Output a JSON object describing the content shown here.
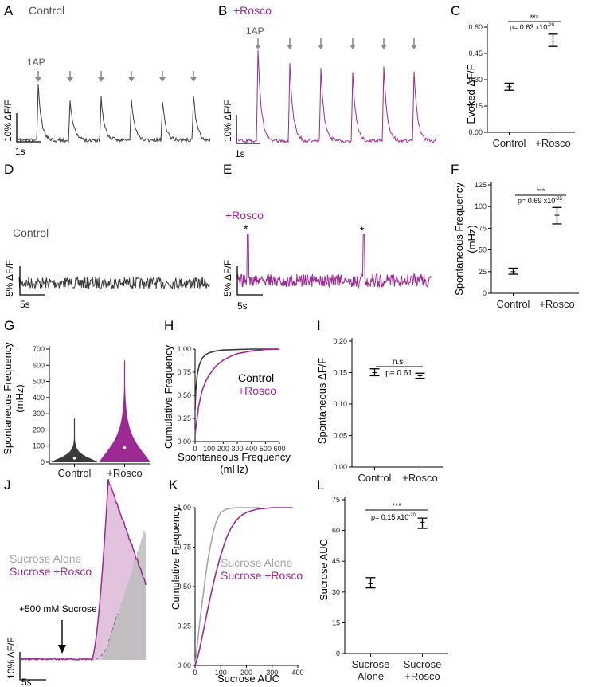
{
  "colors": {
    "control": "#3a3a3a",
    "rosco": "#9b2a92",
    "rosco_fill": "#e2c3de",
    "sucrose_alone": "#a6a6a6",
    "sucrose_fill": "#c8c8c8",
    "arrow": "#8c8c8c"
  },
  "icons": {
    "stimulus": "down-arrow-icon"
  },
  "panels": {
    "A": {
      "letter": "A",
      "title": "Control",
      "stim": "1AP",
      "scale_y": "10% ΔF/F",
      "scale_x": "1s"
    },
    "B": {
      "letter": "B",
      "title": "+Rosco",
      "stim": "1AP",
      "scale_y": "10% ΔF/F",
      "scale_x": "1s"
    },
    "C": {
      "letter": "C",
      "ylabel": "Evoked ΔF/F",
      "sig": "***",
      "pval": "p= 0.63 x10",
      "pexp": "-20"
    },
    "D": {
      "letter": "D",
      "title": "Control",
      "scale_y": "5% ΔF/F",
      "scale_x": "5s"
    },
    "E": {
      "letter": "E",
      "title": "+Rosco",
      "marker": "*",
      "scale_y": "5% ΔF/F",
      "scale_x": "5s"
    },
    "F": {
      "letter": "F",
      "ylabel": "Spontaneous Frequency",
      "ylabel2": "(mHz)",
      "sig": "***",
      "pval": "p= 0.69 x10",
      "pexp": "-35"
    },
    "G": {
      "letter": "G",
      "ylabel": "Spontaneous Frequency",
      "ylabel2": "(mHz)"
    },
    "H": {
      "letter": "H",
      "ylabel": "Cumulative Frequency",
      "xlabel": "Spontaneous Frequency",
      "xlabel2": "(mHz)",
      "legend_control": "Control",
      "legend_rosco": "+Rosco"
    },
    "I": {
      "letter": "I",
      "ylabel": "Spontaneous ΔF/F",
      "sig": "n.s.",
      "pval": "p= 0.61"
    },
    "J": {
      "letter": "J",
      "legend_alone": "Sucrose Alone",
      "legend_rosco": "Sucrose +Rosco",
      "stim": "+500 mM Sucrose",
      "scale_y": "10% ΔF/F",
      "scale_x": "5s"
    },
    "K": {
      "letter": "K",
      "ylabel": "Cumulative Frequency",
      "xlabel": "Sucrose AUC",
      "legend_alone": "Sucrose Alone",
      "legend_rosco": "Sucrose +Rosco"
    },
    "L": {
      "letter": "L",
      "ylabel": "Sucrose AUC",
      "sig": "***",
      "pval": "p= 0.15 x10",
      "pexp": "-20"
    }
  },
  "chart_data": [
    {
      "panel": "C",
      "type": "scatter",
      "categories": [
        "Control",
        "+Rosco"
      ],
      "values": [
        0.26,
        0.52
      ],
      "err_low": [
        0.24,
        0.49
      ],
      "err_high": [
        0.28,
        0.56
      ],
      "ylim": [
        0,
        0.6
      ],
      "yticks": [
        "0.00",
        "0.15",
        "0.30",
        "0.45",
        "0.60"
      ]
    },
    {
      "panel": "F",
      "type": "scatter",
      "categories": [
        "Control",
        "+Rosco"
      ],
      "values": [
        25,
        90
      ],
      "err_low": [
        22,
        80
      ],
      "err_high": [
        29,
        99
      ],
      "ylim": [
        0,
        125
      ],
      "yticks": [
        "0",
        "25",
        "50",
        "75",
        "100",
        "125"
      ]
    },
    {
      "panel": "G",
      "type": "violin",
      "categories": [
        "Control",
        "+Rosco"
      ],
      "medians": [
        25,
        90
      ],
      "maxima": [
        270,
        630
      ],
      "ylim": [
        0,
        700
      ],
      "yticks": [
        "0",
        "100",
        "200",
        "300",
        "400",
        "500",
        "600",
        "700"
      ]
    },
    {
      "panel": "H",
      "type": "line",
      "xlim": [
        0,
        600
      ],
      "ylim": [
        0,
        1
      ],
      "xticks": [
        "0",
        "100",
        "200",
        "300",
        "400",
        "500",
        "600"
      ],
      "yticks": [
        "0.00",
        "0.25",
        "0.50",
        "0.75",
        "1.00"
      ],
      "series": [
        {
          "name": "Control",
          "x": [
            0,
            5,
            15,
            30,
            50,
            75,
            100,
            150,
            200,
            300,
            400,
            600
          ],
          "y": [
            0.35,
            0.55,
            0.72,
            0.83,
            0.9,
            0.94,
            0.96,
            0.98,
            0.99,
            0.995,
            1.0,
            1.0
          ]
        },
        {
          "name": "+Rosco",
          "x": [
            0,
            10,
            25,
            50,
            75,
            100,
            150,
            200,
            250,
            300,
            400,
            500,
            600
          ],
          "y": [
            0.08,
            0.2,
            0.38,
            0.55,
            0.65,
            0.72,
            0.82,
            0.88,
            0.92,
            0.95,
            0.98,
            0.995,
            1.0
          ]
        }
      ]
    },
    {
      "panel": "I",
      "type": "scatter",
      "categories": [
        "Control",
        "+Rosco"
      ],
      "values": [
        0.15,
        0.145
      ],
      "err_low": [
        0.145,
        0.141
      ],
      "err_high": [
        0.156,
        0.149
      ],
      "ylim": [
        0,
        0.2
      ],
      "yticks": [
        "0.00",
        "0.05",
        "0.10",
        "0.15",
        "0.20"
      ]
    },
    {
      "panel": "K",
      "type": "line",
      "xlim": [
        0,
        400
      ],
      "ylim": [
        0,
        1
      ],
      "xticks": [
        "0",
        "100",
        "200",
        "300",
        "400"
      ],
      "yticks": [
        "0.00",
        "0.25",
        "0.50",
        "0.75",
        "1.00"
      ],
      "series": [
        {
          "name": "Sucrose Alone",
          "x": [
            0,
            10,
            20,
            30,
            40,
            50,
            60,
            70,
            80,
            90,
            100,
            120,
            140,
            160,
            200,
            250
          ],
          "y": [
            0.0,
            0.15,
            0.3,
            0.43,
            0.56,
            0.67,
            0.76,
            0.84,
            0.9,
            0.94,
            0.97,
            0.99,
            0.995,
            1.0,
            1.0,
            1.0
          ]
        },
        {
          "name": "Sucrose +Rosco",
          "x": [
            0,
            10,
            20,
            30,
            40,
            50,
            60,
            80,
            100,
            120,
            140,
            160,
            180,
            200,
            240,
            300,
            380
          ],
          "y": [
            0.0,
            0.05,
            0.12,
            0.2,
            0.28,
            0.36,
            0.44,
            0.58,
            0.7,
            0.8,
            0.87,
            0.92,
            0.95,
            0.97,
            0.99,
            1.0,
            1.0
          ]
        }
      ]
    },
    {
      "panel": "L",
      "type": "scatter",
      "categories": [
        "Sucrose Alone",
        "Sucrose +Rosco"
      ],
      "values": [
        34,
        64
      ],
      "err_low": [
        32,
        61
      ],
      "err_high": [
        37,
        66
      ],
      "ylim": [
        0,
        75
      ],
      "yticks": [
        "0",
        "15",
        "30",
        "45",
        "60",
        "75"
      ]
    }
  ]
}
